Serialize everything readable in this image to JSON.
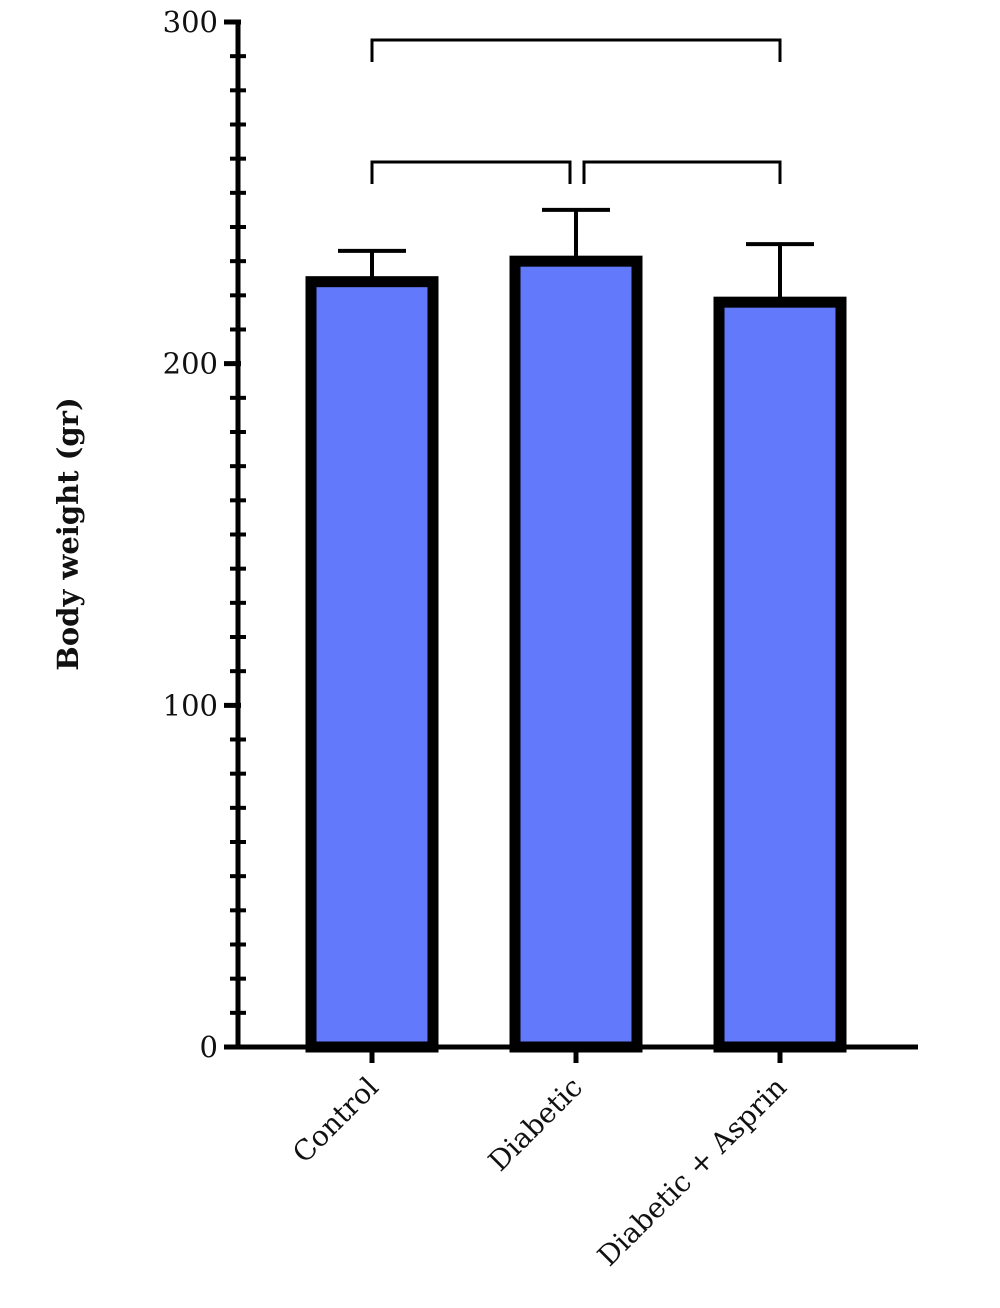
{
  "chart_data": {
    "type": "bar",
    "title": "",
    "xlabel": "",
    "ylabel": "Body weight (gr)",
    "ylim": [
      0,
      300
    ],
    "yticks": [
      "0",
      "100",
      "200",
      "300"
    ],
    "minor_tick_step": 10,
    "categories": [
      "Control",
      "Diabetic",
      "Diabetic + Asprin"
    ],
    "values": [
      224,
      230,
      218
    ],
    "errors": [
      9,
      15,
      17
    ],
    "bar_fill_color": "#6279fc",
    "bar_edge_color": "#000000",
    "significance_brackets": [
      {
        "from": 0,
        "to": 1
      },
      {
        "from": 1,
        "to": 2
      },
      {
        "from": 0,
        "to": 2
      }
    ],
    "grid": false,
    "legend": "none"
  }
}
